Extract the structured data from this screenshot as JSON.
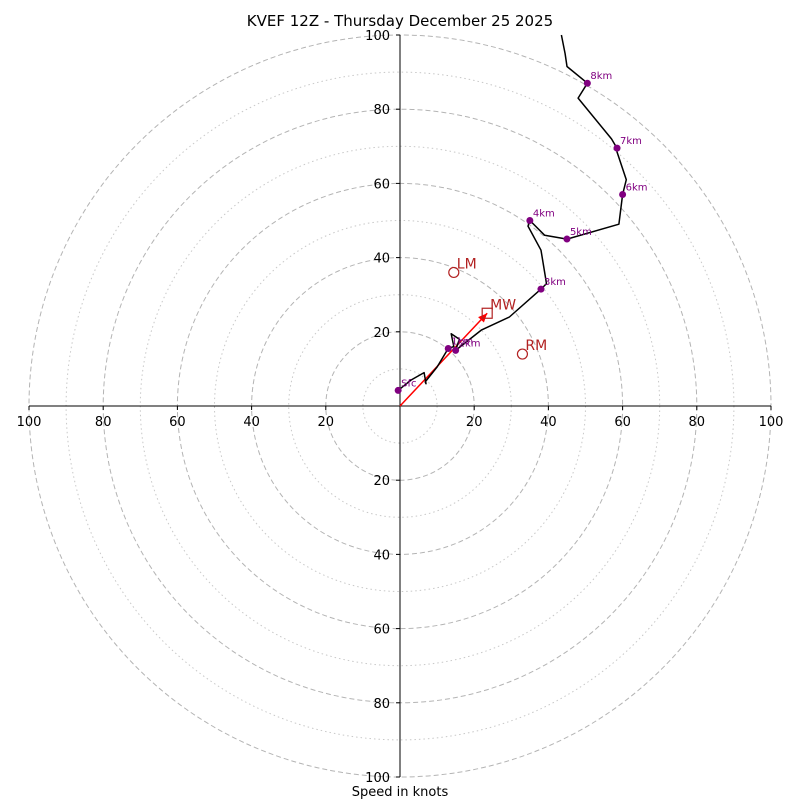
{
  "chart_data": {
    "type": "hodograph",
    "title": "KVEF 12Z - Thursday December 25 2025",
    "xlabel": "Speed in knots",
    "units": "knots",
    "max_speed": 100,
    "ring_major": [
      20,
      40,
      60,
      80,
      100
    ],
    "ring_minor": [
      10,
      30,
      50,
      70,
      90
    ],
    "tick_labels": {
      "x": [
        "100",
        "80",
        "60",
        "40",
        "20",
        "20",
        "40",
        "60",
        "80",
        "100"
      ],
      "y_top": [
        "20",
        "40",
        "60",
        "80",
        "100"
      ],
      "y_bottom": [
        "20",
        "40",
        "60",
        "80",
        "100"
      ]
    },
    "tick_values": {
      "x": [
        -100,
        -80,
        -60,
        -40,
        -20,
        20,
        40,
        60,
        80,
        100
      ],
      "y_top": [
        20,
        40,
        60,
        80,
        100
      ],
      "y_bottom": [
        -20,
        -40,
        -60,
        -80,
        -100
      ]
    },
    "trace": {
      "color": "#000000",
      "points": [
        [
          -0.5,
          4.2
        ],
        [
          3,
          7
        ],
        [
          6.5,
          9
        ],
        [
          7,
          6
        ],
        [
          6.8,
          6.5
        ],
        [
          10,
          10.5
        ],
        [
          13,
          15.5
        ],
        [
          14.5,
          16
        ],
        [
          13.8,
          19.5
        ],
        [
          16,
          18
        ],
        [
          15,
          15
        ],
        [
          22,
          20.5
        ],
        [
          29.5,
          24
        ],
        [
          38,
          31.5
        ],
        [
          39.5,
          33
        ],
        [
          38,
          42
        ],
        [
          34.5,
          48.5
        ],
        [
          35,
          50
        ],
        [
          39,
          46
        ],
        [
          45,
          45
        ],
        [
          59,
          49
        ],
        [
          60,
          57
        ],
        [
          61,
          61
        ],
        [
          58.5,
          68.5
        ],
        [
          58.5,
          69.5
        ],
        [
          57,
          72
        ],
        [
          48,
          83
        ],
        [
          50.5,
          87
        ],
        [
          45,
          91.5
        ],
        [
          44.5,
          95
        ],
        [
          43.5,
          100
        ]
      ]
    },
    "height_markers": {
      "color": "#800080",
      "points": [
        {
          "label": "Sfc",
          "u": -0.5,
          "v": 4.2
        },
        {
          "label": "1km",
          "u": 13,
          "v": 15.5
        },
        {
          "label": "2km",
          "u": 15,
          "v": 15
        },
        {
          "label": "3km",
          "u": 38,
          "v": 31.5
        },
        {
          "label": "4km",
          "u": 35,
          "v": 50
        },
        {
          "label": "5km",
          "u": 45,
          "v": 45
        },
        {
          "label": "6km",
          "u": 60,
          "v": 57
        },
        {
          "label": "7km",
          "u": 58.5,
          "v": 69.5
        },
        {
          "label": "8km",
          "u": 50.5,
          "v": 87
        }
      ]
    },
    "motions": {
      "color": "#b22222",
      "items": [
        {
          "label": "LM",
          "u": 14.5,
          "v": 36,
          "marker": "circle"
        },
        {
          "label": "MW",
          "u": 23.5,
          "v": 25,
          "marker": "square"
        },
        {
          "label": "RM",
          "u": 33,
          "v": 14,
          "marker": "circle"
        }
      ]
    },
    "shear_vector": {
      "color": "#ff0000",
      "from": [
        0,
        0
      ],
      "to": [
        23.5,
        25
      ]
    }
  }
}
